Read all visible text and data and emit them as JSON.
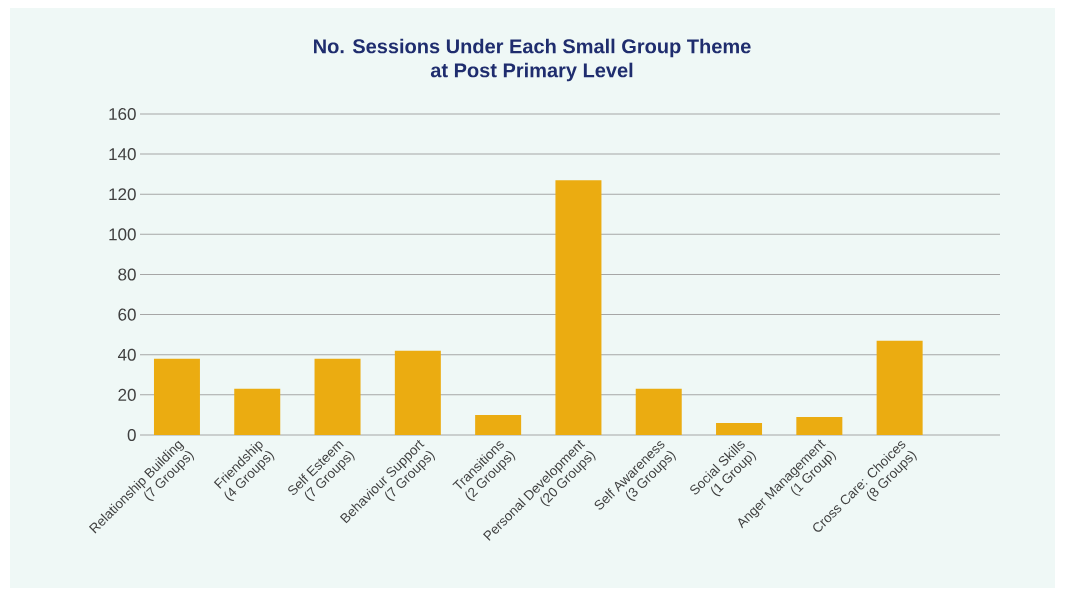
{
  "chart_data": {
    "type": "bar",
    "title": "No. Sessions Under Each Small Group Theme\nat Post Primary Level",
    "categories": [
      "Relationship Building\n(7 Groups)",
      "Friendship\n(4 Groups)",
      "Self Esteem\n(7 Groups)",
      "Behaviour Support\n(7 Groups)",
      "Transitions\n(2 Groups)",
      "Personal Development\n(20 Groups)",
      "Self Awareness\n(3 Groups)",
      "Social Skills\n(1 Group)",
      "Anger Management\n(1 Group)",
      "Cross Care: Choices\n(8 Groups)"
    ],
    "values": [
      38,
      23,
      38,
      42,
      10,
      127,
      23,
      6,
      9,
      47
    ],
    "color": "#ebac11",
    "ylim": [
      0,
      160
    ],
    "yticks": [
      0,
      20,
      40,
      60,
      80,
      100,
      120,
      140,
      160
    ],
    "grid": "y"
  }
}
